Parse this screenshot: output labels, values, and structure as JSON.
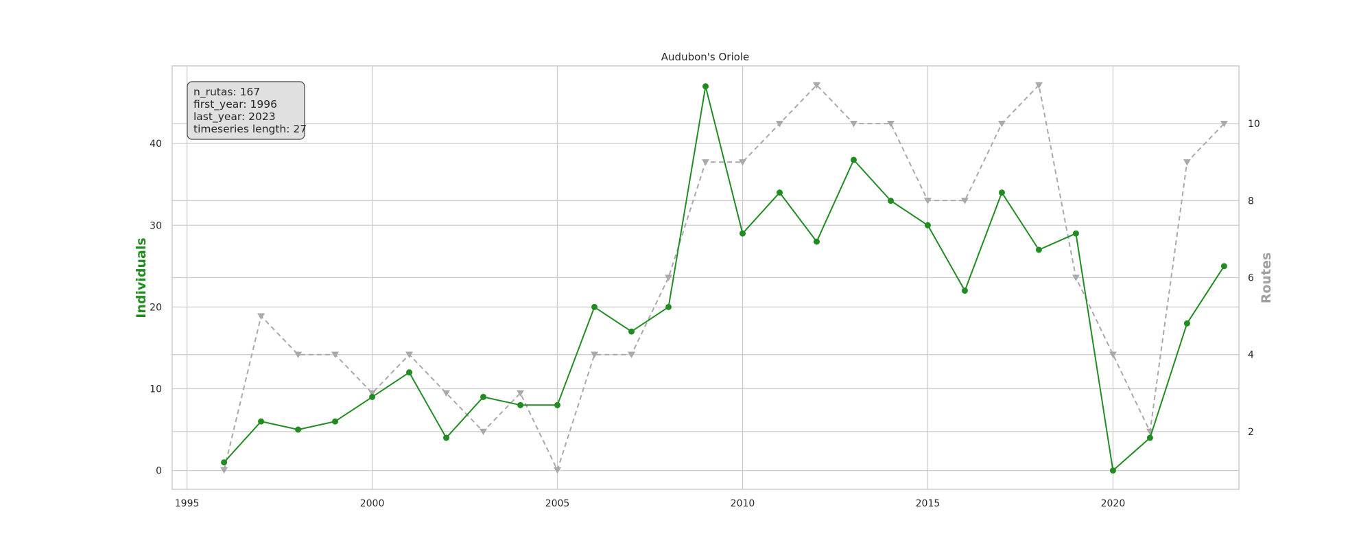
{
  "chart_data": {
    "type": "line",
    "title": "Audubon's Oriole",
    "ylabel_left": "Individuals",
    "ylabel_right": "Routes",
    "xlim": [
      1994.6,
      2023.4
    ],
    "ylim_left": [
      -2.3,
      49.5
    ],
    "ylim_right": [
      0.5,
      11.5
    ],
    "x_ticks": [
      1995,
      2000,
      2005,
      2010,
      2015,
      2020
    ],
    "y_left_ticks": [
      0,
      10,
      20,
      30,
      40
    ],
    "y_right_ticks": [
      2,
      4,
      6,
      8,
      10
    ],
    "grid": true,
    "colors": {
      "individuals": "#228b22",
      "routes": "#a9a9a9",
      "grid": "#cccccc",
      "axes": "#cccccc",
      "ylabel_right": "#a0a0a0"
    },
    "info_box": [
      "n_rutas: 167",
      "first_year: 1996",
      "last_year: 2023",
      "timeseries length: 27"
    ],
    "series": [
      {
        "axis": "left",
        "style": "solid",
        "marker": "circle",
        "x": [
          1996,
          1997,
          1998,
          1999,
          2000,
          2001,
          2002,
          2003,
          2004,
          2005,
          2006,
          2007,
          2008,
          2009,
          2010,
          2011,
          2012,
          2013,
          2014,
          2015,
          2016,
          2017,
          2018,
          2019,
          2020,
          2021,
          2022,
          2023
        ],
        "values": [
          1,
          6,
          5,
          6,
          9,
          12,
          4,
          9,
          8,
          8,
          20,
          17,
          20,
          47,
          29,
          34,
          28,
          38,
          33,
          30,
          22,
          34,
          27,
          29,
          0,
          4,
          18,
          25
        ]
      },
      {
        "axis": "right",
        "style": "dashed",
        "marker": "triangle-down",
        "x": [
          1996,
          1997,
          1998,
          1999,
          2000,
          2001,
          2002,
          2003,
          2004,
          2005,
          2006,
          2007,
          2008,
          2009,
          2010,
          2011,
          2012,
          2013,
          2014,
          2015,
          2016,
          2017,
          2018,
          2019,
          2020,
          2021,
          2022,
          2023
        ],
        "values": [
          1,
          5,
          4,
          4,
          3,
          4,
          3,
          2,
          3,
          1,
          4,
          4,
          6,
          9,
          9,
          10,
          11,
          10,
          10,
          8,
          8,
          10,
          11,
          6,
          4,
          2,
          9,
          10
        ]
      }
    ]
  }
}
